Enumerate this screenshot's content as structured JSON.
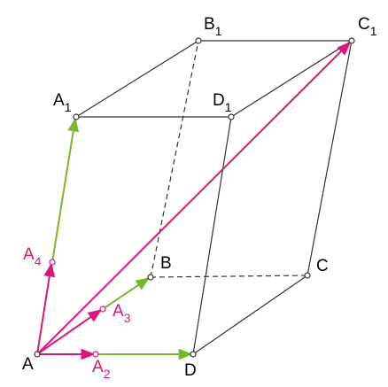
{
  "nodes": [
    {
      "label": "A"
    },
    {
      "label": "B"
    },
    {
      "label": "C"
    },
    {
      "label": "D"
    },
    {
      "label": "A",
      "subscript": "1"
    },
    {
      "label": "B",
      "subscript": "1"
    },
    {
      "label": "C",
      "subscript": "1"
    },
    {
      "label": "D",
      "subscript": "1"
    },
    {
      "label": "A",
      "subscript": "2"
    },
    {
      "label": "A",
      "subscript": "3"
    },
    {
      "label": "A",
      "subscript": "4"
    }
  ]
}
